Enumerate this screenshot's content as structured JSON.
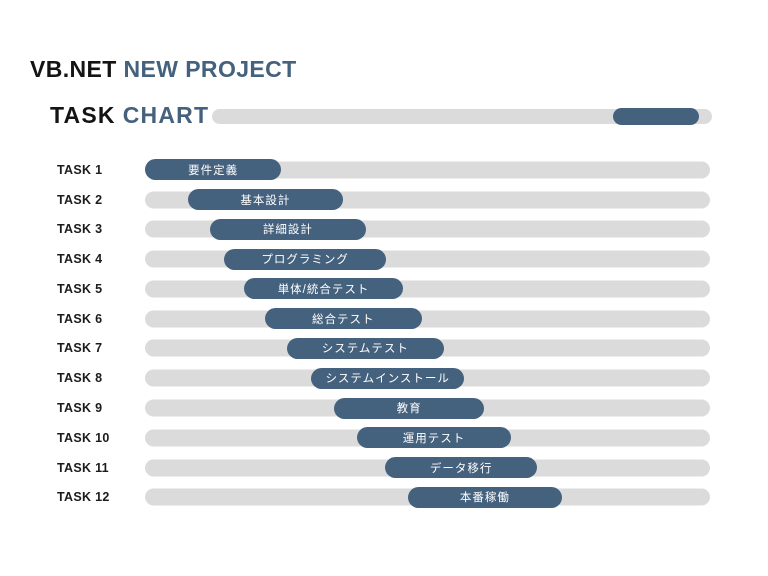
{
  "title": {
    "prefix": "VB.NET",
    "accent": "NEW PROJECT"
  },
  "header": {
    "heading_primary": "TASK",
    "heading_accent": "CHART",
    "progress": {
      "start_pct": 80.2,
      "width_pct": 17.2
    }
  },
  "colors": {
    "accent": "#44617e",
    "bar": "#44617e",
    "track": "#dbdbdb",
    "heading_dark": "#141414",
    "bar_label": "#ffffff"
  },
  "tasks": [
    {
      "name": "TASK 1",
      "label": "要件定義",
      "start_pct": 0,
      "width_pct": 24.1
    },
    {
      "name": "TASK 2",
      "label": "基本設計",
      "start_pct": 7.6,
      "width_pct": 27.4
    },
    {
      "name": "TASK 3",
      "label": "詳細設計",
      "start_pct": 11.5,
      "width_pct": 27.6
    },
    {
      "name": "TASK 4",
      "label": "プログラミング",
      "start_pct": 14.0,
      "width_pct": 28.7
    },
    {
      "name": "TASK 5",
      "label": "単体/統合テスト",
      "start_pct": 17.5,
      "width_pct": 28.2
    },
    {
      "name": "TASK 6",
      "label": "総合テスト",
      "start_pct": 21.2,
      "width_pct": 27.8
    },
    {
      "name": "TASK 7",
      "label": "システムテスト",
      "start_pct": 25.1,
      "width_pct": 27.8
    },
    {
      "name": "TASK 8",
      "label": "システムインストール",
      "start_pct": 29.4,
      "width_pct": 27.1
    },
    {
      "name": "TASK 9",
      "label": "教育",
      "start_pct": 33.5,
      "width_pct": 26.5
    },
    {
      "name": "TASK 10",
      "label": "運用テスト",
      "start_pct": 37.5,
      "width_pct": 27.3
    },
    {
      "name": "TASK 11",
      "label": "データ移行",
      "start_pct": 42.5,
      "width_pct": 26.9
    },
    {
      "name": "TASK 12",
      "label": "本番稼働",
      "start_pct": 46.5,
      "width_pct": 27.3
    }
  ],
  "chart_data": {
    "type": "bar",
    "subtype": "gantt-task-timeline",
    "title": "TASK CHART",
    "supertitle": "VB.NET NEW PROJECT",
    "categories": [
      "TASK 1",
      "TASK 2",
      "TASK 3",
      "TASK 4",
      "TASK 5",
      "TASK 6",
      "TASK 7",
      "TASK 8",
      "TASK 9",
      "TASK 10",
      "TASK 11",
      "TASK 12"
    ],
    "bar_labels": [
      "要件定義",
      "基本設計",
      "詳細設計",
      "プログラミング",
      "単体/統合テスト",
      "総合テスト",
      "システムテスト",
      "システムインストール",
      "教育",
      "運用テスト",
      "データ移行",
      "本番稼働"
    ],
    "series": [
      {
        "name": "task-span-pct-of-timeline",
        "values": [
          [
            0,
            24.1
          ],
          [
            7.6,
            35.0
          ],
          [
            11.5,
            39.1
          ],
          [
            14.0,
            42.7
          ],
          [
            17.5,
            45.7
          ],
          [
            21.2,
            49.0
          ],
          [
            25.1,
            52.9
          ],
          [
            29.4,
            56.5
          ],
          [
            33.5,
            60.0
          ],
          [
            37.5,
            64.8
          ],
          [
            42.5,
            69.4
          ],
          [
            46.5,
            73.8
          ]
        ]
      }
    ],
    "xlim_pct": [
      0,
      100
    ],
    "header_progress_pct": [
      80.2,
      97.4
    ],
    "grid": false,
    "legend": false,
    "orientation": "horizontal"
  }
}
